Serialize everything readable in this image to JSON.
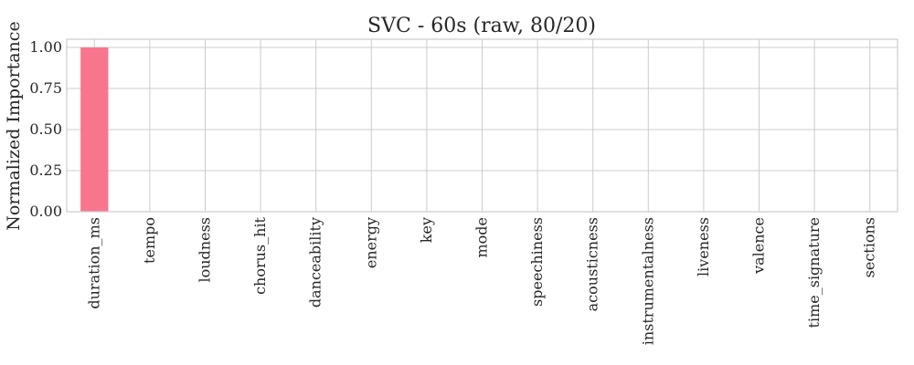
{
  "chart_data": {
    "type": "bar",
    "title": "SVC - 60s (raw, 80/20)",
    "xlabel": "",
    "ylabel": "Normalized Importance",
    "categories": [
      "duration_ms",
      "tempo",
      "loudness",
      "chorus_hit",
      "danceability",
      "energy",
      "key",
      "mode",
      "speechiness",
      "acousticness",
      "instrumentalness",
      "liveness",
      "valence",
      "time_signature",
      "sections"
    ],
    "values": [
      1.0,
      0,
      0,
      0,
      0,
      0,
      0,
      0,
      0,
      0,
      0,
      0,
      0,
      0,
      0
    ],
    "ylim": [
      0,
      1.05
    ],
    "yticks": [
      "0.00",
      "0.25",
      "0.50",
      "0.75",
      "1.00"
    ],
    "grid": true,
    "bar_color": "#f7768e"
  }
}
